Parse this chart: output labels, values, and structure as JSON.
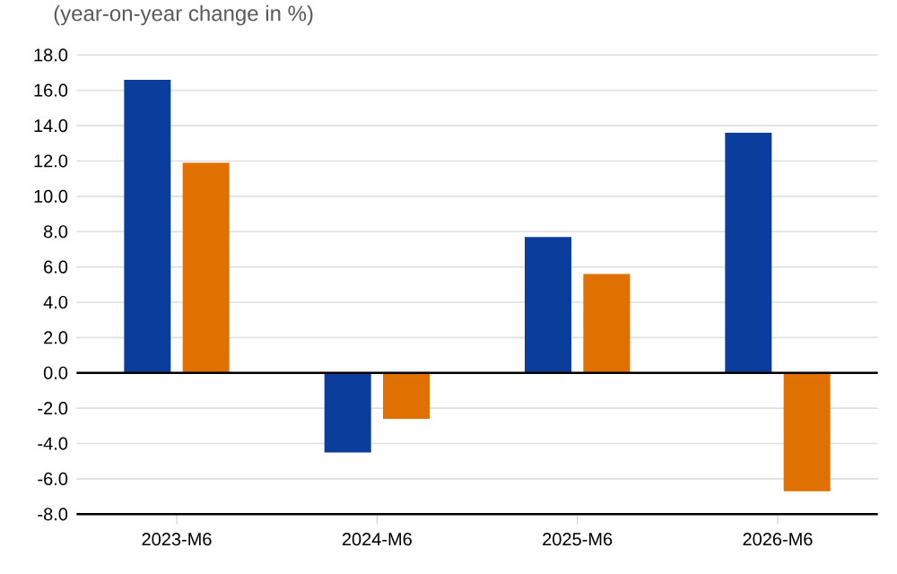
{
  "chart_data": {
    "type": "bar",
    "subtitle": "(year-on-year change in %)",
    "categories": [
      "2023-M6",
      "2024-M6",
      "2025-M6",
      "2026-M6"
    ],
    "series": [
      {
        "color": "#0b3d9c",
        "values": [
          16.6,
          -4.5,
          7.7,
          13.6
        ]
      },
      {
        "color": "#e07000",
        "values": [
          11.9,
          -2.6,
          5.6,
          -6.7
        ]
      }
    ],
    "ylim": [
      -8,
      18
    ],
    "yticks": [
      {
        "value": -8,
        "label": "-8.0"
      },
      {
        "value": -6,
        "label": "-6.0"
      },
      {
        "value": -4,
        "label": "-4.0"
      },
      {
        "value": -2,
        "label": "-2.0"
      },
      {
        "value": 0,
        "label": "0.0"
      },
      {
        "value": 2,
        "label": "2.0"
      },
      {
        "value": 4,
        "label": "4.0"
      },
      {
        "value": 6,
        "label": "6.0"
      },
      {
        "value": 8,
        "label": "8.0"
      },
      {
        "value": 10,
        "label": "10.0"
      },
      {
        "value": 12,
        "label": "12.0"
      },
      {
        "value": 14,
        "label": "14.0"
      },
      {
        "value": 16,
        "label": "16.0"
      },
      {
        "value": 18,
        "label": "18.0"
      }
    ],
    "grid": "y"
  }
}
